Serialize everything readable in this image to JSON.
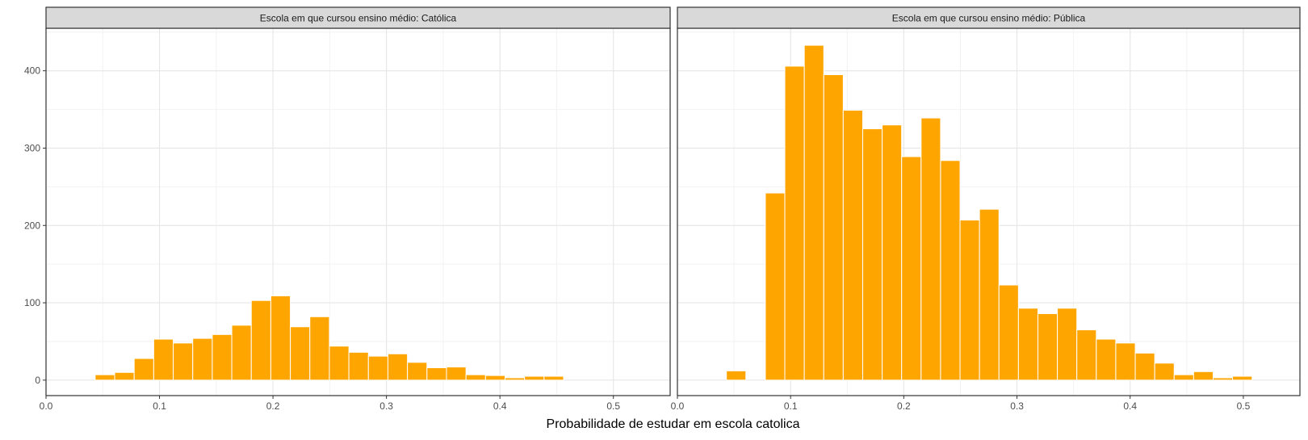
{
  "chart_data": {
    "type": "bar",
    "xlabel": "Probabilidade de estudar em escola catolica",
    "ylabel": "",
    "xlim": [
      0,
      0.55
    ],
    "ylim": [
      -20,
      455
    ],
    "x_ticks": [
      "0.0",
      "0.1",
      "0.2",
      "0.3",
      "0.4",
      "0.5"
    ],
    "x_tick_values": [
      0,
      0.1,
      0.2,
      0.3,
      0.4,
      0.5
    ],
    "y_ticks": [
      "0",
      "100",
      "200",
      "300",
      "400"
    ],
    "y_tick_values": [
      0,
      100,
      200,
      300,
      400
    ],
    "grid": true,
    "bar_color": "#FFA500",
    "strip_fill": "#D9D9D9",
    "bin_width": 0.0172,
    "bin_start": 0.0433,
    "panels": [
      {
        "strip_label": "Escola em que cursou ensino médio: Católica",
        "counts": [
          7,
          10,
          28,
          53,
          48,
          54,
          59,
          71,
          103,
          109,
          69,
          82,
          44,
          36,
          31,
          34,
          23,
          16,
          17,
          7,
          6,
          3,
          5,
          5
        ]
      },
      {
        "strip_label": "Escola em que cursou ensino médio: Pública",
        "counts": [
          12,
          0,
          242,
          406,
          433,
          395,
          349,
          325,
          330,
          289,
          339,
          284,
          207,
          221,
          123,
          93,
          86,
          93,
          65,
          53,
          48,
          35,
          22,
          7,
          11,
          3,
          5
        ]
      }
    ]
  }
}
